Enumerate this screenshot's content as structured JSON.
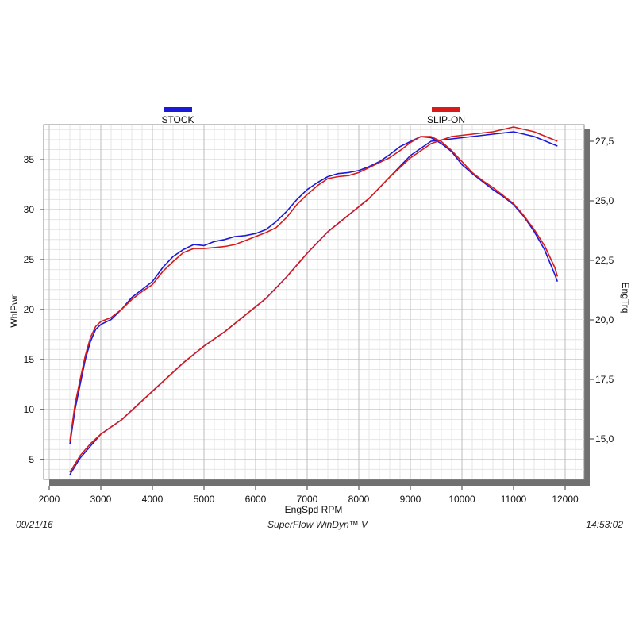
{
  "chart_data": {
    "type": "line",
    "xlabel": "EngSpd  RPM",
    "ylabel_left": "WhlPwr",
    "ylabel_right": "EngTrq",
    "xlim": [
      2000,
      12500
    ],
    "ylim_left": [
      3,
      38.5
    ],
    "ylim_right": [
      13.3,
      28.2
    ],
    "x_ticks": [
      "2000",
      "3000",
      "4000",
      "5000",
      "6000",
      "7000",
      "8000",
      "9000",
      "10000",
      "11000",
      "12000"
    ],
    "y_left_ticks": [
      "5",
      "10",
      "15",
      "20",
      "25",
      "30",
      "35"
    ],
    "y_right_ticks": [
      "15,0",
      "17,5",
      "20,0",
      "22,5",
      "25,0",
      "27,5"
    ],
    "grid": true,
    "legend_placement": "top",
    "series": [
      {
        "name": "STOCK",
        "color": "#1a1ad8",
        "power": [
          [
            2400,
            6.5
          ],
          [
            2500,
            10
          ],
          [
            2600,
            12.5
          ],
          [
            2700,
            15
          ],
          [
            2800,
            16.8
          ],
          [
            2900,
            18
          ],
          [
            3000,
            18.5
          ],
          [
            3200,
            19
          ],
          [
            3400,
            20
          ],
          [
            3600,
            21.2
          ],
          [
            3800,
            22
          ],
          [
            4000,
            22.8
          ],
          [
            4200,
            24.2
          ],
          [
            4400,
            25.3
          ],
          [
            4600,
            26
          ],
          [
            4800,
            26.5
          ],
          [
            5000,
            26.4
          ],
          [
            5200,
            26.8
          ],
          [
            5400,
            27
          ],
          [
            5600,
            27.3
          ],
          [
            5800,
            27.4
          ],
          [
            6000,
            27.6
          ],
          [
            6200,
            28
          ],
          [
            6400,
            28.8
          ],
          [
            6600,
            29.8
          ],
          [
            6800,
            31
          ],
          [
            7000,
            32
          ],
          [
            7200,
            32.7
          ],
          [
            7400,
            33.3
          ],
          [
            7600,
            33.6
          ],
          [
            7800,
            33.7
          ],
          [
            8000,
            33.9
          ],
          [
            8200,
            34.3
          ],
          [
            8400,
            34.8
          ],
          [
            8600,
            35.5
          ],
          [
            8800,
            36.3
          ],
          [
            9000,
            36.8
          ],
          [
            9200,
            37.3
          ],
          [
            9400,
            37.2
          ],
          [
            9600,
            36.6
          ],
          [
            9800,
            35.8
          ],
          [
            10000,
            34.5
          ],
          [
            10200,
            33.6
          ],
          [
            10400,
            32.8
          ],
          [
            10600,
            32
          ],
          [
            10800,
            31.3
          ],
          [
            11000,
            30.5
          ],
          [
            11200,
            29.3
          ],
          [
            11400,
            27.8
          ],
          [
            11600,
            26
          ],
          [
            11800,
            23.5
          ],
          [
            11850,
            22.8
          ]
        ],
        "torque": [
          [
            2400,
            13.5
          ],
          [
            2600,
            14.2
          ],
          [
            2800,
            14.7
          ],
          [
            3000,
            15.2
          ],
          [
            3400,
            15.8
          ],
          [
            3800,
            16.6
          ],
          [
            4200,
            17.4
          ],
          [
            4600,
            18.2
          ],
          [
            5000,
            18.9
          ],
          [
            5400,
            19.5
          ],
          [
            5800,
            20.2
          ],
          [
            6200,
            20.9
          ],
          [
            6600,
            21.8
          ],
          [
            7000,
            22.8
          ],
          [
            7400,
            23.7
          ],
          [
            7800,
            24.4
          ],
          [
            8200,
            25.1
          ],
          [
            8600,
            26
          ],
          [
            9000,
            26.9
          ],
          [
            9400,
            27.5
          ],
          [
            9800,
            27.6
          ],
          [
            10200,
            27.7
          ],
          [
            10600,
            27.8
          ],
          [
            11000,
            27.9
          ],
          [
            11400,
            27.7
          ],
          [
            11850,
            27.3
          ]
        ]
      },
      {
        "name": "SLIP-ON",
        "color": "#d81a1a",
        "power": [
          [
            2400,
            6.8
          ],
          [
            2500,
            10.5
          ],
          [
            2600,
            13
          ],
          [
            2700,
            15.4
          ],
          [
            2800,
            17.2
          ],
          [
            2900,
            18.3
          ],
          [
            3000,
            18.8
          ],
          [
            3200,
            19.2
          ],
          [
            3400,
            20
          ],
          [
            3600,
            21
          ],
          [
            3800,
            21.8
          ],
          [
            4000,
            22.5
          ],
          [
            4200,
            23.8
          ],
          [
            4400,
            24.8
          ],
          [
            4600,
            25.7
          ],
          [
            4800,
            26.1
          ],
          [
            5000,
            26.1
          ],
          [
            5200,
            26.2
          ],
          [
            5400,
            26.3
          ],
          [
            5600,
            26.5
          ],
          [
            5800,
            26.9
          ],
          [
            6000,
            27.3
          ],
          [
            6200,
            27.7
          ],
          [
            6400,
            28.2
          ],
          [
            6600,
            29.2
          ],
          [
            6800,
            30.5
          ],
          [
            7000,
            31.5
          ],
          [
            7200,
            32.4
          ],
          [
            7400,
            33.1
          ],
          [
            7600,
            33.3
          ],
          [
            7800,
            33.4
          ],
          [
            8000,
            33.7
          ],
          [
            8200,
            34.2
          ],
          [
            8400,
            34.7
          ],
          [
            8600,
            35.2
          ],
          [
            8800,
            35.9
          ],
          [
            9000,
            36.7
          ],
          [
            9200,
            37.3
          ],
          [
            9400,
            37.3
          ],
          [
            9600,
            36.8
          ],
          [
            9800,
            35.9
          ],
          [
            10000,
            34.8
          ],
          [
            10200,
            33.7
          ],
          [
            10400,
            32.9
          ],
          [
            10600,
            32.2
          ],
          [
            10800,
            31.4
          ],
          [
            11000,
            30.6
          ],
          [
            11200,
            29.4
          ],
          [
            11400,
            28
          ],
          [
            11600,
            26.4
          ],
          [
            11800,
            24.2
          ],
          [
            11850,
            23.3
          ]
        ],
        "torque": [
          [
            2400,
            13.6
          ],
          [
            2600,
            14.3
          ],
          [
            2800,
            14.8
          ],
          [
            3000,
            15.2
          ],
          [
            3400,
            15.8
          ],
          [
            3800,
            16.6
          ],
          [
            4200,
            17.4
          ],
          [
            4600,
            18.2
          ],
          [
            5000,
            18.9
          ],
          [
            5400,
            19.5
          ],
          [
            5800,
            20.2
          ],
          [
            6200,
            20.9
          ],
          [
            6600,
            21.8
          ],
          [
            7000,
            22.8
          ],
          [
            7400,
            23.7
          ],
          [
            7800,
            24.4
          ],
          [
            8200,
            25.1
          ],
          [
            8600,
            26
          ],
          [
            9000,
            26.8
          ],
          [
            9400,
            27.4
          ],
          [
            9800,
            27.7
          ],
          [
            10200,
            27.8
          ],
          [
            10600,
            27.9
          ],
          [
            11000,
            28.1
          ],
          [
            11400,
            27.9
          ],
          [
            11850,
            27.5
          ]
        ]
      }
    ]
  },
  "footer": {
    "date": "09/21/16",
    "software": "SuperFlow WinDyn™ V",
    "time": "14:53:02"
  }
}
